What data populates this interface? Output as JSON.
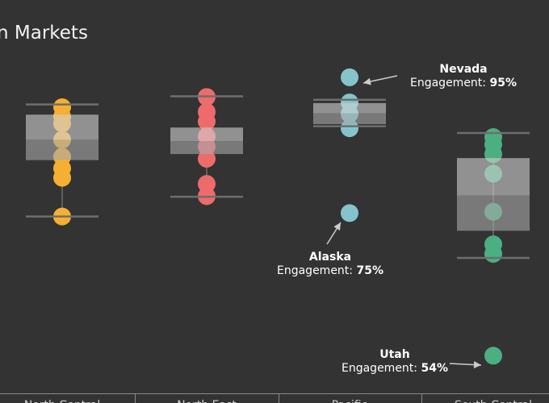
{
  "chart_data": {
    "type": "box-plot",
    "title": "n Markets",
    "ylim": [
      50,
      99.5
    ],
    "categories": [
      "North Central",
      "North East",
      "Pacific",
      "South Central"
    ],
    "colors": {
      "North Central": "#f5b031",
      "North East": "#ee6b6b",
      "Pacific": "#86c4cc",
      "South Central": "#4caf82"
    },
    "boxes": [
      {
        "category": "North Central",
        "whisker_low": 74.5,
        "q1": 82.8,
        "median": 85.8,
        "q3": 89.5,
        "whisker_high": 91.0
      },
      {
        "category": "North East",
        "whisker_low": 77.4,
        "q1": 83.7,
        "median": 85.6,
        "q3": 87.6,
        "whisker_high": 92.2
      },
      {
        "category": "Pacific",
        "whisker_low": 87.8,
        "q1": 88.1,
        "median": 89.7,
        "q3": 91.2,
        "whisker_high": 91.7
      },
      {
        "category": "South Central",
        "whisker_low": 68.4,
        "q1": 72.4,
        "median": 77.6,
        "q3": 83.1,
        "whisker_high": 86.8
      }
    ],
    "points": [
      {
        "category": "North Central",
        "values": [
          74.5,
          80.2,
          81.6,
          83.3,
          85.8,
          88.2,
          89.2,
          90.6
        ]
      },
      {
        "category": "North East",
        "values": [
          77.5,
          79.3,
          83.0,
          84.8,
          86.3,
          88.5,
          89.9,
          92.1
        ]
      },
      {
        "category": "Pacific",
        "values": [
          75.0,
          87.5,
          89.6,
          91.3,
          95.0
        ]
      },
      {
        "category": "South Central",
        "values": [
          54.0,
          69.0,
          70.4,
          75.2,
          80.8,
          83.7,
          85.1,
          86.2
        ]
      }
    ],
    "annotations": [
      {
        "state": "Nevada",
        "label": "Engagement:",
        "value": "95%"
      },
      {
        "state": "Alaska",
        "label": "Engagement:",
        "value": "75%"
      },
      {
        "state": "Utah",
        "label": "Engagement:",
        "value": "54%"
      }
    ],
    "x_labels": [
      "North Central",
      "North East",
      "Pacific",
      "South Central"
    ]
  }
}
